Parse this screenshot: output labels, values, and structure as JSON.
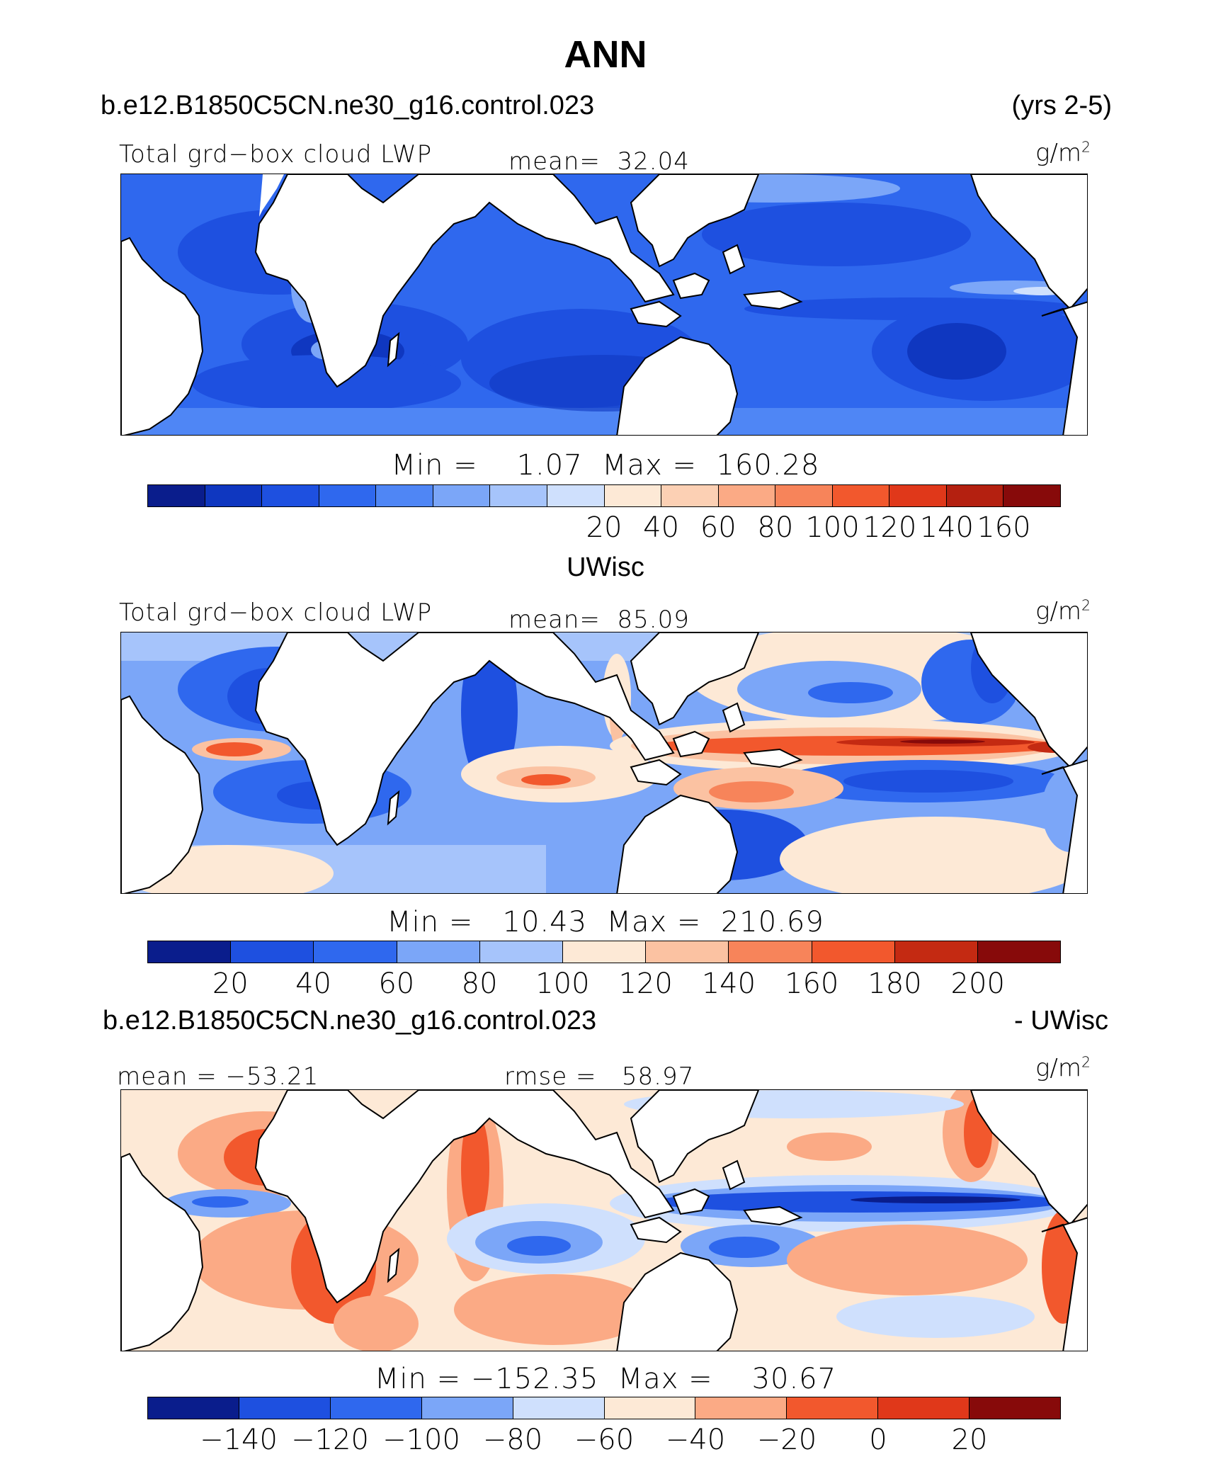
{
  "figure": {
    "title": "ANN",
    "top_case": "b.e12.B1850C5CN.ne30_g16.control.023",
    "years": "(yrs 2-5)",
    "mid_title": "UWisc",
    "bottom_case": "b.e12.B1850C5CN.ne30_g16.control.023",
    "bottom_suffix": "- UWisc"
  },
  "chart_data": [
    {
      "type": "heatmap",
      "panel": "model",
      "variable_label": "Total grd−box cloud LWP",
      "mean_label": "mean=",
      "mean_value": "32.04",
      "units_base": "g/m",
      "units_exp": "2",
      "min_label": "Min",
      "min_value": "1.07",
      "max_label": "Max",
      "max_value": "160.28",
      "colorbar": {
        "colors": [
          "#0a1d8c",
          "#0f37c0",
          "#1e50e0",
          "#2f68ee",
          "#4f86f5",
          "#7ba6f8",
          "#a6c4fb",
          "#cfe0fd",
          "#fde9d6",
          "#fcd0b4",
          "#fbaa85",
          "#f7845a",
          "#f2582d",
          "#e0381a",
          "#b42010",
          "#870a0a"
        ],
        "tick_labels": [
          "20",
          "40",
          "60",
          "80",
          "100",
          "120",
          "140",
          "160"
        ]
      }
    },
    {
      "type": "heatmap",
      "panel": "observations",
      "variable_label": "Total grd−box cloud LWP",
      "mean_label": "mean=",
      "mean_value": "85.09",
      "units_base": "g/m",
      "units_exp": "2",
      "min_label": "Min",
      "min_value": "10.43",
      "max_label": "Max",
      "max_value": "210.69",
      "colorbar": {
        "colors": [
          "#0a1d8c",
          "#1e50e0",
          "#2f68ee",
          "#7ba6f8",
          "#a6c4fb",
          "#fde9d6",
          "#fbc2a2",
          "#f7845a",
          "#f2582d",
          "#c42a12",
          "#870a0a"
        ],
        "tick_labels": [
          "20",
          "40",
          "60",
          "80",
          "100",
          "120",
          "140",
          "160",
          "180",
          "200"
        ]
      }
    },
    {
      "type": "heatmap",
      "panel": "difference",
      "mean_label": "mean =",
      "mean_value": "−53.21",
      "rmse_label": "rmse =",
      "rmse_value": "58.97",
      "units_base": "g/m",
      "units_exp": "2",
      "min_label": "Min",
      "min_value": "−152.35",
      "max_label": "Max",
      "max_value": "30.67",
      "colorbar": {
        "colors": [
          "#0a1d8c",
          "#1e50e0",
          "#2f68ee",
          "#7ba6f8",
          "#cfe0fd",
          "#fde9d6",
          "#fbaa85",
          "#f2582d",
          "#e0381a",
          "#870a0a"
        ],
        "tick_labels": [
          "−140",
          "−120",
          "−100",
          "−80",
          "−60",
          "−40",
          "−20",
          "0",
          "20"
        ]
      }
    }
  ]
}
